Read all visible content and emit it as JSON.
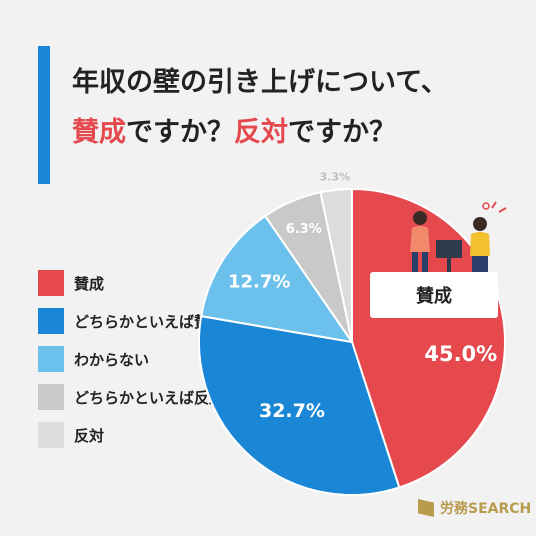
{
  "title": {
    "line1": "年収の壁の引き上げについて、",
    "line2_part1": "賛成",
    "line2_part2": "ですか？",
    "line2_part3": "反対",
    "line2_part4": "ですか？"
  },
  "highlight_color": "#e5484d",
  "chart_data": {
    "type": "pie",
    "title": "年収の壁の引き上げについて、賛成ですか？反対ですか？",
    "start": "12 o'clock, clockwise",
    "slices": [
      {
        "label": "賛成",
        "value": 45.0,
        "value_text": "45.0%",
        "color": "#e5484d"
      },
      {
        "label": "どちらかといえば賛成",
        "value": 32.7,
        "value_text": "32.7%",
        "color": "#1a86d6"
      },
      {
        "label": "わからない",
        "value": 12.7,
        "value_text": "12.7%",
        "color": "#6cc0ec"
      },
      {
        "label": "どちらかといえば反対",
        "value": 6.3,
        "value_text": "6.3%",
        "color": "#c9c9c9"
      },
      {
        "label": "反対",
        "value": 3.3,
        "value_text": "3.3%",
        "color": "#dcdcdc"
      }
    ],
    "legend_position": "left"
  },
  "callout": {
    "label": "賛成"
  },
  "brand": {
    "name": "労務SEARCH"
  },
  "icons": {
    "logo": "brand-logo-icon",
    "illustration": "people-discussion-illustration"
  }
}
